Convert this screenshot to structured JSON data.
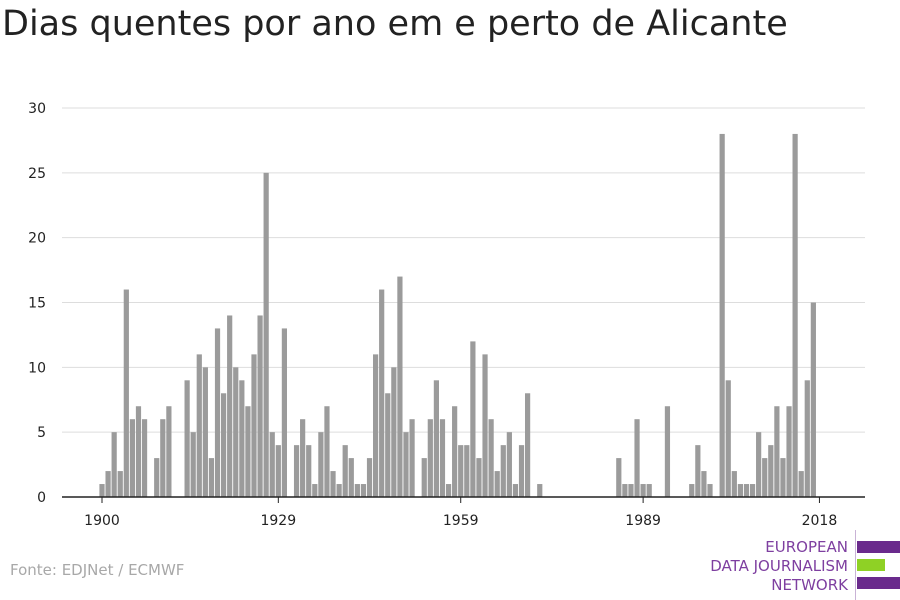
{
  "title": "Dias quentes por ano em e perto de Alicante",
  "source": "Fonte: EDJNet / ECMWF",
  "logo": {
    "lines": [
      "EUROPEAN",
      "DATA JOURNALISM",
      "NETWORK"
    ],
    "colors": {
      "purple": "#6a2a8c",
      "green": "#8fd125"
    }
  },
  "colors": {
    "bar": "#9b9b9b",
    "grid": "#dddddd",
    "axis": "#222222"
  },
  "chart_data": {
    "type": "bar",
    "title": "Dias quentes por ano em e perto de Alicante",
    "xlabel": "",
    "ylabel": "",
    "ylim": [
      0,
      30
    ],
    "y_ticks": [
      0,
      5,
      10,
      15,
      20,
      25,
      30
    ],
    "x_ticks": [
      1900,
      1929,
      1959,
      1989,
      2018
    ],
    "grid": true,
    "start_year": 1900,
    "end_year": 2018,
    "years": [
      1900,
      1901,
      1902,
      1903,
      1904,
      1905,
      1906,
      1907,
      1908,
      1909,
      1910,
      1911,
      1912,
      1913,
      1914,
      1915,
      1916,
      1917,
      1918,
      1919,
      1920,
      1921,
      1922,
      1923,
      1924,
      1925,
      1926,
      1927,
      1928,
      1929,
      1930,
      1931,
      1932,
      1933,
      1934,
      1935,
      1936,
      1937,
      1938,
      1939,
      1940,
      1941,
      1942,
      1943,
      1944,
      1945,
      1946,
      1947,
      1948,
      1949,
      1950,
      1951,
      1952,
      1953,
      1954,
      1955,
      1956,
      1957,
      1958,
      1959,
      1960,
      1961,
      1962,
      1963,
      1964,
      1965,
      1966,
      1967,
      1968,
      1969,
      1970,
      1971,
      1972,
      1973,
      1974,
      1975,
      1976,
      1977,
      1978,
      1979,
      1980,
      1981,
      1982,
      1983,
      1984,
      1985,
      1986,
      1987,
      1988,
      1989,
      1990,
      1991,
      1992,
      1993,
      1994,
      1995,
      1996,
      1997,
      1998,
      1999,
      2000,
      2001,
      2002,
      2003,
      2004,
      2005,
      2006,
      2007,
      2008,
      2009,
      2010,
      2011,
      2012,
      2013,
      2014,
      2015,
      2016,
      2017,
      2018
    ],
    "values": [
      1,
      2,
      5,
      2,
      16,
      6,
      7,
      6,
      0,
      3,
      6,
      7,
      0,
      0,
      9,
      5,
      11,
      10,
      3,
      13,
      8,
      14,
      10,
      9,
      7,
      11,
      14,
      25,
      5,
      4,
      13,
      0,
      4,
      6,
      4,
      1,
      5,
      7,
      2,
      1,
      4,
      3,
      1,
      1,
      3,
      11,
      16,
      8,
      10,
      17,
      5,
      6,
      0,
      3,
      6,
      9,
      6,
      1,
      7,
      4,
      4,
      12,
      3,
      11,
      6,
      2,
      4,
      5,
      1,
      4,
      8,
      0,
      1,
      0,
      0,
      0,
      0,
      0,
      0,
      0,
      0,
      0,
      0,
      0,
      0,
      3,
      1,
      1,
      6,
      1,
      1,
      0,
      0,
      7,
      0,
      0,
      0,
      1,
      4,
      2,
      1,
      0,
      28,
      9,
      2,
      1,
      1,
      1,
      5,
      3,
      4,
      7,
      3,
      7,
      28,
      2,
      9,
      15,
      0
    ]
  }
}
